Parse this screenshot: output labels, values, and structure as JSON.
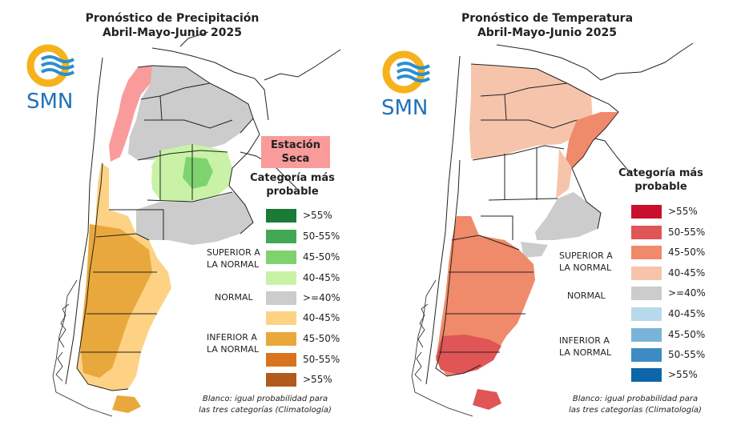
{
  "precipitation": {
    "title_line1": "Pronóstico de Precipitación",
    "title_line2": "Abril-Mayo-Junio 2025",
    "logo_text": "SMN",
    "badge_line1": "Estación",
    "badge_line2": "Seca",
    "legend_title_line1": "Categoría más",
    "legend_title_line2": "probable",
    "legend_items": [
      {
        "label": ">55%",
        "color": "#1a7a36"
      },
      {
        "label": "50-55%",
        "color": "#43a853"
      },
      {
        "label": "45-50%",
        "color": "#7fd36f"
      },
      {
        "label": "40-45%",
        "color": "#c9f2a6"
      },
      {
        "label": ">=40%",
        "color": "#cccccc"
      },
      {
        "label": "40-45%",
        "color": "#fdd285"
      },
      {
        "label": "45-50%",
        "color": "#e9a83c"
      },
      {
        "label": "50-55%",
        "color": "#d9731f"
      },
      {
        "label": ">55%",
        "color": "#b05a1c"
      }
    ],
    "group_superior_line1": "SUPERIOR A",
    "group_superior_line2": "LA NORMAL",
    "group_normal": "NORMAL",
    "group_inferior_line1": "INFERIOR A",
    "group_inferior_line2": "LA NORMAL",
    "footnote_line1": "Blanco: igual probabilidad para",
    "footnote_line2": "las tres categorías (Climatología)"
  },
  "temperature": {
    "title_line1": "Pronóstico de Temperatura",
    "title_line2": "Abril-Mayo-Junio 2025",
    "logo_text": "SMN",
    "legend_title_line1": "Categoría más",
    "legend_title_line2": "probable",
    "legend_items": [
      {
        "label": ">55%",
        "color": "#c8102e"
      },
      {
        "label": "50-55%",
        "color": "#e05555"
      },
      {
        "label": "45-50%",
        "color": "#ef8a6a"
      },
      {
        "label": "40-45%",
        "color": "#f6c4ab"
      },
      {
        "label": ">=40%",
        "color": "#cccccc"
      },
      {
        "label": "40-45%",
        "color": "#b8d8ec"
      },
      {
        "label": "45-50%",
        "color": "#7ab3d8"
      },
      {
        "label": "50-55%",
        "color": "#3c8cc3"
      },
      {
        "label": ">55%",
        "color": "#0d65aa"
      }
    ],
    "group_superior_line1": "SUPERIOR A",
    "group_superior_line2": "LA NORMAL",
    "group_normal": "NORMAL",
    "group_inferior_line1": "INFERIOR A",
    "group_inferior_line2": "LA NORMAL",
    "footnote_line1": "Blanco: igual probabilidad para",
    "footnote_line2": "las tres categorías (Climatología)"
  }
}
